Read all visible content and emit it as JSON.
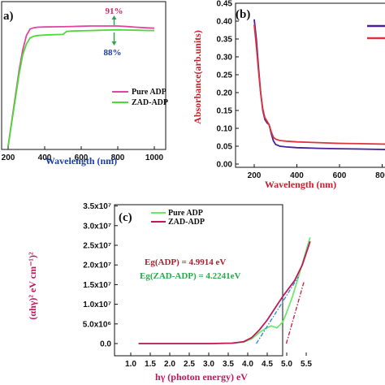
{
  "chart_data": [
    {
      "type": "line",
      "panel_label": "a)",
      "xlabel": "Wavelength (nm)",
      "xlim": [
        200,
        1000
      ],
      "x_ticks": [
        "200",
        "400",
        "600",
        "800",
        "1000"
      ],
      "legend": {
        "placement": "center-right"
      },
      "annotations": [
        {
          "text": "91%",
          "x": 780,
          "color": "#e0245e",
          "arrow": "up"
        },
        {
          "text": "88%",
          "x": 780,
          "color": "#1b3ea6",
          "arrow": "down"
        }
      ],
      "series": [
        {
          "name": "Pure ADP",
          "color": "#e0459e",
          "x": [
            200,
            220,
            240,
            260,
            280,
            300,
            320,
            340,
            360,
            400,
            450,
            500,
            550,
            600,
            650,
            700,
            750,
            800,
            850,
            900,
            950,
            1000
          ],
          "y": [
            0.0,
            0.21,
            0.42,
            0.63,
            0.8,
            0.92,
            0.975,
            0.985,
            0.99,
            0.992,
            0.993,
            0.994,
            0.996,
            0.998,
            1.0,
            1.0,
            1.0,
            1.0,
            0.995,
            0.99,
            0.985,
            0.982
          ]
        },
        {
          "name": "ZAD-ADP",
          "color": "#4cd837",
          "x": [
            200,
            220,
            240,
            260,
            280,
            300,
            320,
            340,
            360,
            400,
            450,
            500,
            520,
            550,
            600,
            650,
            700,
            750,
            800,
            850,
            900,
            950,
            1000
          ],
          "y": [
            0.0,
            0.2,
            0.4,
            0.6,
            0.76,
            0.85,
            0.9,
            0.915,
            0.92,
            0.925,
            0.928,
            0.93,
            0.955,
            0.958,
            0.96,
            0.962,
            0.964,
            0.966,
            0.968,
            0.966,
            0.965,
            0.963,
            0.962
          ]
        }
      ]
    },
    {
      "type": "line",
      "panel_label": "(b)",
      "xlabel": "Wavelength (nm)",
      "ylabel": "Absorbance(arb.units)",
      "xlim": [
        200,
        1000
      ],
      "ylim": [
        0.0,
        0.45
      ],
      "x_ticks": [
        "200",
        "400",
        "600",
        "800"
      ],
      "y_ticks": [
        "0.00",
        "0.05",
        "0.10",
        "0.15",
        "0.20",
        "0.25",
        "0.30",
        "0.35",
        "0.40",
        "0.45"
      ],
      "legend": {
        "placement": "top-right"
      },
      "series": [
        {
          "color": "#4a1e9e",
          "x": [
            200,
            210,
            220,
            230,
            240,
            250,
            260,
            270,
            280,
            290,
            300,
            320,
            350,
            400,
            500,
            600,
            700,
            800,
            900,
            1000
          ],
          "y": [
            0.405,
            0.35,
            0.27,
            0.2,
            0.15,
            0.125,
            0.115,
            0.11,
            0.085,
            0.065,
            0.055,
            0.05,
            0.048,
            0.046,
            0.044,
            0.043,
            0.042,
            0.041,
            0.04,
            0.04
          ]
        },
        {
          "color": "#e0323a",
          "x": [
            200,
            210,
            220,
            230,
            240,
            250,
            260,
            270,
            280,
            290,
            300,
            320,
            350,
            400,
            500,
            600,
            700,
            800,
            900,
            1000
          ],
          "y": [
            0.39,
            0.33,
            0.26,
            0.2,
            0.155,
            0.13,
            0.12,
            0.11,
            0.09,
            0.075,
            0.07,
            0.066,
            0.064,
            0.062,
            0.06,
            0.058,
            0.057,
            0.056,
            0.055,
            0.055
          ]
        }
      ]
    },
    {
      "type": "line",
      "panel_label": "(c)",
      "xlabel": "hγ (photon energy) eV",
      "ylabel": "(αhγ)² eV cm⁻¹)²",
      "xlim": [
        1.0,
        6.0
      ],
      "ylim": [
        0,
        35000000
      ],
      "x_ticks": [
        "1.0",
        "1.5",
        "2.0",
        "2.5",
        "3.0",
        "3.5",
        "4.0",
        "4.5",
        "5.0",
        "5.5"
      ],
      "y_ticks": [
        "0.0",
        "5.0x10⁶",
        "1.0x10⁷",
        "1.5x10⁷",
        "2.0x10⁷",
        "2.5x10⁷",
        "3.0x10⁷",
        "3.5x10⁷"
      ],
      "legend": {
        "placement": "top-left"
      },
      "annotations": [
        {
          "text": "Eg(ADP) = 4.9914 eV",
          "color": "#b01e2e"
        },
        {
          "text": "Eg(ZAD-ADP) = 4.2241eV",
          "color": "#2aa84a"
        }
      ],
      "series": [
        {
          "name": "Pure ADP",
          "color": "#6ee86a",
          "x": [
            1.2,
            2.0,
            3.0,
            3.6,
            3.9,
            4.1,
            4.3,
            4.45,
            4.6,
            4.75,
            4.9,
            5.0,
            5.15,
            5.3,
            5.45,
            5.6
          ],
          "y": [
            0,
            0,
            0,
            100000,
            400000,
            1200000,
            2800000,
            3800000,
            4500000,
            4000000,
            5500000,
            8000000,
            12000000,
            17000000,
            22000000,
            27000000
          ]
        },
        {
          "name": "ZAD-ADP",
          "color": "#c2185b",
          "x": [
            1.2,
            2.0,
            3.0,
            3.6,
            3.9,
            4.1,
            4.3,
            4.5,
            4.7,
            4.9,
            5.05,
            5.2,
            5.4,
            5.6
          ],
          "y": [
            0,
            0,
            0,
            100000,
            500000,
            1500000,
            3500000,
            6000000,
            9000000,
            12000000,
            14000000,
            16000000,
            20000000,
            26000000
          ]
        },
        {
          "name": "",
          "color": "#2b8fd8",
          "style": "dashdot",
          "x": [
            4.22,
            5.3
          ],
          "y": [
            0,
            17000000
          ]
        },
        {
          "name": "",
          "color": "#c6284a",
          "style": "dashdot",
          "x": [
            4.99,
            5.45
          ],
          "y": [
            0,
            16000000
          ]
        }
      ]
    }
  ]
}
